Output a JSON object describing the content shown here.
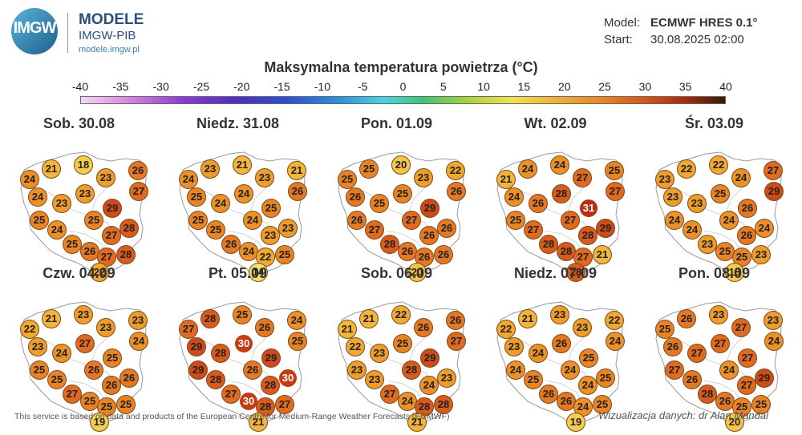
{
  "header": {
    "logo_text": "IMGW",
    "brand_name": "MODELE",
    "brand_org": "IMGW-PIB",
    "brand_url": "modele.imgw.pl",
    "model_label": "Model:",
    "model_value": "ECMWF HRES 0.1°",
    "start_label": "Start:",
    "start_value": "30.08.2025 02:00"
  },
  "title": "Maksymalna temperatura powietrza (°C)",
  "scale": {
    "ticks": [
      "-40",
      "-35",
      "-30",
      "-25",
      "-20",
      "-15",
      "-10",
      "-5",
      "0",
      "5",
      "10",
      "15",
      "20",
      "25",
      "30",
      "35",
      "40"
    ]
  },
  "panels": [
    {
      "date": "Sob. 30.08",
      "values": [
        24,
        21,
        18,
        23,
        26,
        27,
        24,
        23,
        23,
        29,
        25,
        24,
        25,
        27,
        28,
        25,
        26,
        27,
        28,
        22
      ]
    },
    {
      "date": "Niedz. 31.08",
      "values": [
        24,
        23,
        21,
        23,
        21,
        26,
        25,
        24,
        24,
        25,
        25,
        25,
        24,
        23,
        23,
        26,
        24,
        22,
        25,
        14
      ]
    },
    {
      "date": "Pon. 01.09",
      "values": [
        25,
        25,
        20,
        23,
        22,
        26,
        26,
        25,
        25,
        29,
        26,
        27,
        27,
        26,
        26,
        28,
        26,
        26,
        26,
        20
      ]
    },
    {
      "date": "Wt. 02.09",
      "values": [
        21,
        24,
        24,
        27,
        25,
        27,
        24,
        26,
        28,
        31,
        25,
        27,
        27,
        28,
        29,
        28,
        28,
        27,
        21,
        28
      ]
    },
    {
      "date": "Śr. 03.09",
      "values": [
        23,
        22,
        22,
        24,
        27,
        29,
        23,
        23,
        25,
        26,
        24,
        24,
        24,
        26,
        24,
        23,
        25,
        25,
        23,
        18
      ]
    },
    {
      "date": "Czw. 04.09",
      "values": [
        22,
        21,
        23,
        23,
        23,
        24,
        23,
        24,
        27,
        25,
        25,
        25,
        26,
        26,
        26,
        27,
        25,
        25,
        25,
        19
      ]
    },
    {
      "date": "Pt. 05.09",
      "values": [
        27,
        28,
        25,
        26,
        24,
        25,
        29,
        28,
        30,
        29,
        29,
        28,
        26,
        28,
        30,
        27,
        30,
        28,
        27,
        21
      ]
    },
    {
      "date": "Sob. 06.09",
      "values": [
        21,
        21,
        22,
        26,
        26,
        27,
        22,
        23,
        25,
        29,
        23,
        23,
        28,
        24,
        23,
        27,
        24,
        28,
        28,
        21
      ]
    },
    {
      "date": "Niedz. 07.09",
      "values": [
        22,
        21,
        23,
        23,
        22,
        24,
        23,
        24,
        26,
        25,
        24,
        25,
        24,
        24,
        25,
        26,
        26,
        24,
        25,
        19
      ]
    },
    {
      "date": "Pon. 08.09",
      "values": [
        25,
        26,
        23,
        27,
        23,
        24,
        26,
        27,
        27,
        27,
        27,
        26,
        24,
        27,
        29,
        28,
        26,
        25,
        25,
        20
      ]
    }
  ],
  "colors": {
    "t14": "#f2e070",
    "t18": "#f5cc4a",
    "t19": "#f6cd50",
    "t20": "#f5c448",
    "t21": "#f2b43a",
    "t22": "#f0a830",
    "t23": "#ee9c2c",
    "t24": "#ec9028",
    "t25": "#e98426",
    "t26": "#e57824",
    "t27": "#df6a20",
    "t28": "#d85a1c",
    "t29": "#ce4a18",
    "t30": "#c43c14",
    "t31": "#b83012"
  },
  "footer": {
    "attribution": "This service is based on data and products of the European Centre for Medium-Range Weather Forecasts (ECMWF)",
    "credit": "Wizualizacja danych: dr Alan Mandal"
  }
}
